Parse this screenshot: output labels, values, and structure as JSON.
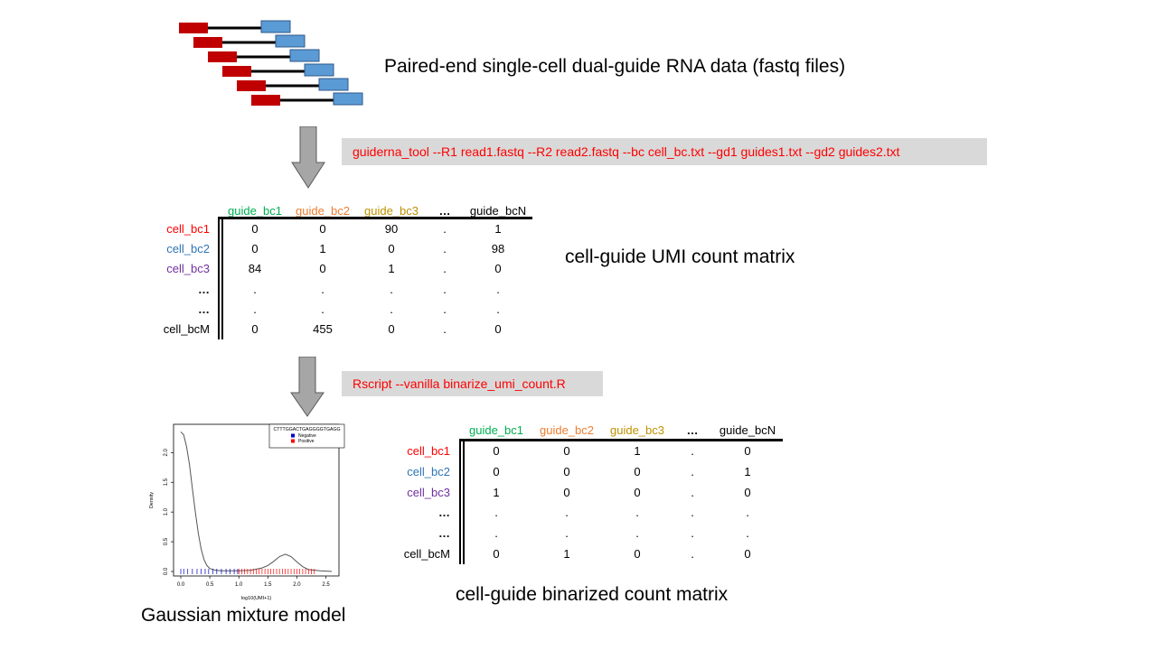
{
  "colors": {
    "read1": "#c00000",
    "read2": "#5b9bd5",
    "red": "#ff0000",
    "blue": "#2e75b6",
    "purple": "#7030a0",
    "green": "#00b050",
    "orange": "#ed7d31",
    "gold": "#bf9000",
    "cmd_bg": "#d9d9d9",
    "arrow": "#a6a6a6"
  },
  "step1": {
    "label": "Paired-end single-cell dual-guide RNA data (fastq files)",
    "command": "guiderna_tool --R1 read1.fastq --R2 read2.fastq --bc cell_bc.txt  --gd1 guides1.txt --gd2 guides2.txt"
  },
  "step2": {
    "label": "cell-guide UMI  count matrix",
    "command": "Rscript --vanilla  binarize_umi_count.R"
  },
  "umi_matrix": {
    "columns": [
      {
        "label": "guide_bc1",
        "color": "green"
      },
      {
        "label": "guide_bc2",
        "color": "orange"
      },
      {
        "label": "guide_bc3",
        "color": "gold"
      },
      {
        "label": "…",
        "color": "black"
      },
      {
        "label": "guide_bcN",
        "color": "black"
      }
    ],
    "rows": [
      {
        "label": "cell_bc1",
        "color": "red",
        "values": [
          "0",
          "0",
          "90",
          ".",
          "1"
        ]
      },
      {
        "label": "cell_bc2",
        "color": "blue",
        "values": [
          "0",
          "1",
          "0",
          ".",
          "98"
        ]
      },
      {
        "label": "cell_bc3",
        "color": "purple",
        "values": [
          "84",
          "0",
          "1",
          ".",
          "0"
        ]
      },
      {
        "label": "…",
        "color": "black",
        "values": [
          ".",
          ".",
          ".",
          ".",
          "."
        ]
      },
      {
        "label": "…",
        "color": "black",
        "values": [
          ".",
          ".",
          ".",
          ".",
          "."
        ]
      },
      {
        "label": "cell_bcM",
        "color": "black",
        "values": [
          "0",
          "455",
          "0",
          ".",
          "0"
        ]
      }
    ]
  },
  "binary_matrix": {
    "label": "cell-guide binarized count matrix",
    "columns": [
      {
        "label": "guide_bc1",
        "color": "green"
      },
      {
        "label": "guide_bc2",
        "color": "orange"
      },
      {
        "label": "guide_bc3",
        "color": "gold"
      },
      {
        "label": "…",
        "color": "black"
      },
      {
        "label": "guide_bcN",
        "color": "black"
      }
    ],
    "rows": [
      {
        "label": "cell_bc1",
        "color": "red",
        "values": [
          "0",
          "0",
          "1",
          ".",
          "0"
        ]
      },
      {
        "label": "cell_bc2",
        "color": "blue",
        "values": [
          "0",
          "0",
          "0",
          ".",
          "1"
        ]
      },
      {
        "label": "cell_bc3",
        "color": "purple",
        "values": [
          "1",
          "0",
          "0",
          ".",
          "0"
        ]
      },
      {
        "label": "…",
        "color": "black",
        "values": [
          ".",
          ".",
          ".",
          ".",
          "."
        ]
      },
      {
        "label": "…",
        "color": "black",
        "values": [
          ".",
          ".",
          ".",
          ".",
          "."
        ]
      },
      {
        "label": "cell_bcM",
        "color": "black",
        "values": [
          "0",
          "1",
          "0",
          ".",
          "0"
        ]
      }
    ]
  },
  "gmm": {
    "label": "Gaussian mixture model",
    "legend_title": "CTTTGGACTGAGGGGTGAGG",
    "legend_items": [
      "Negative",
      "Positive"
    ],
    "xlabel": "log10(UMI+1)",
    "ylabel": "Density",
    "xticks": [
      "0.0",
      "0.5",
      "1.0",
      "1.5",
      "2.0",
      "2.5"
    ],
    "yticks": [
      "0.0",
      "0.5",
      "1.0",
      "1.5",
      "2.0"
    ]
  },
  "chart_data": {
    "type": "line",
    "xlabel": "log10(UMI+1)",
    "ylabel": "Density",
    "xlim": [
      0,
      2.6
    ],
    "ylim": [
      0,
      2.4
    ],
    "x": [
      0.0,
      0.05,
      0.1,
      0.15,
      0.2,
      0.25,
      0.3,
      0.35,
      0.4,
      0.45,
      0.5,
      0.6,
      0.7,
      0.8,
      1.0,
      1.2,
      1.4,
      1.5,
      1.6,
      1.7,
      1.8,
      1.9,
      2.0,
      2.1,
      2.2,
      2.4,
      2.6
    ],
    "series": [
      {
        "values": [
          2.35,
          2.3,
          2.1,
          1.8,
          1.4,
          1.0,
          0.65,
          0.38,
          0.2,
          0.1,
          0.05,
          0.02,
          0.01,
          0.01,
          0.01,
          0.02,
          0.06,
          0.1,
          0.17,
          0.25,
          0.29,
          0.25,
          0.16,
          0.08,
          0.03,
          0.01,
          0.0
        ]
      }
    ],
    "rug": {
      "Negative": [
        0.0,
        0.05,
        0.12,
        0.2,
        0.28,
        0.35,
        0.42,
        0.48,
        0.55,
        0.62,
        0.7,
        0.78,
        0.85,
        0.92,
        0.98
      ],
      "Positive": [
        1.0,
        1.05,
        1.1,
        1.15,
        1.2,
        1.25,
        1.3,
        1.35,
        1.4,
        1.45,
        1.5,
        1.55,
        1.6,
        1.65,
        1.7,
        1.75,
        1.8,
        1.85,
        1.9,
        1.95,
        2.0,
        2.05,
        2.1,
        2.15,
        2.2,
        2.25,
        2.3
      ]
    },
    "legend": [
      "Negative",
      "Positive"
    ],
    "legend_position": "top-right"
  }
}
